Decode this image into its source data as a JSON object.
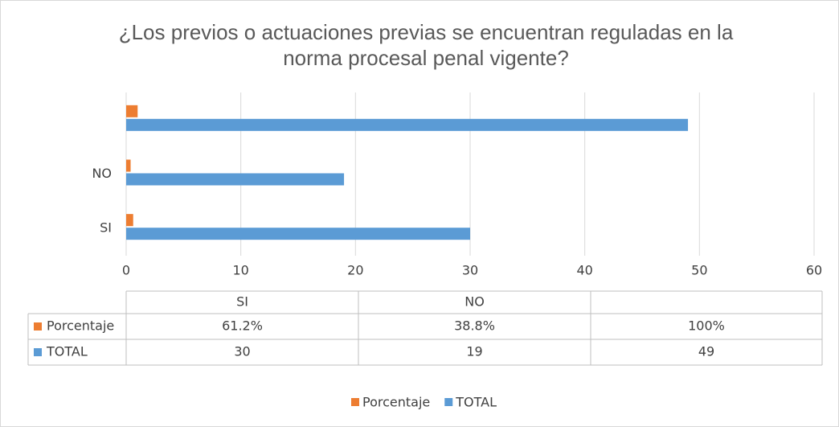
{
  "chart_data": {
    "type": "bar",
    "orientation": "horizontal",
    "title": "¿Los previos o actuaciones previas se encuentran reguladas en la norma procesal penal vigente?",
    "categories": [
      "SI",
      "NO",
      null
    ],
    "series": [
      {
        "name": "Porcentaje",
        "color": "#ed7d31",
        "values": [
          0.612,
          0.388,
          1
        ],
        "value_labels": [
          "61.2%",
          "38.8%",
          "100%"
        ]
      },
      {
        "name": "TOTAL",
        "color": "#5b9bd5",
        "values": [
          30,
          19,
          49
        ]
      }
    ],
    "xlim": [
      0,
      60
    ],
    "xticks": [
      0,
      10,
      20,
      30,
      40,
      50,
      60
    ],
    "grid": true,
    "legend": "bottom",
    "data_table": true
  }
}
